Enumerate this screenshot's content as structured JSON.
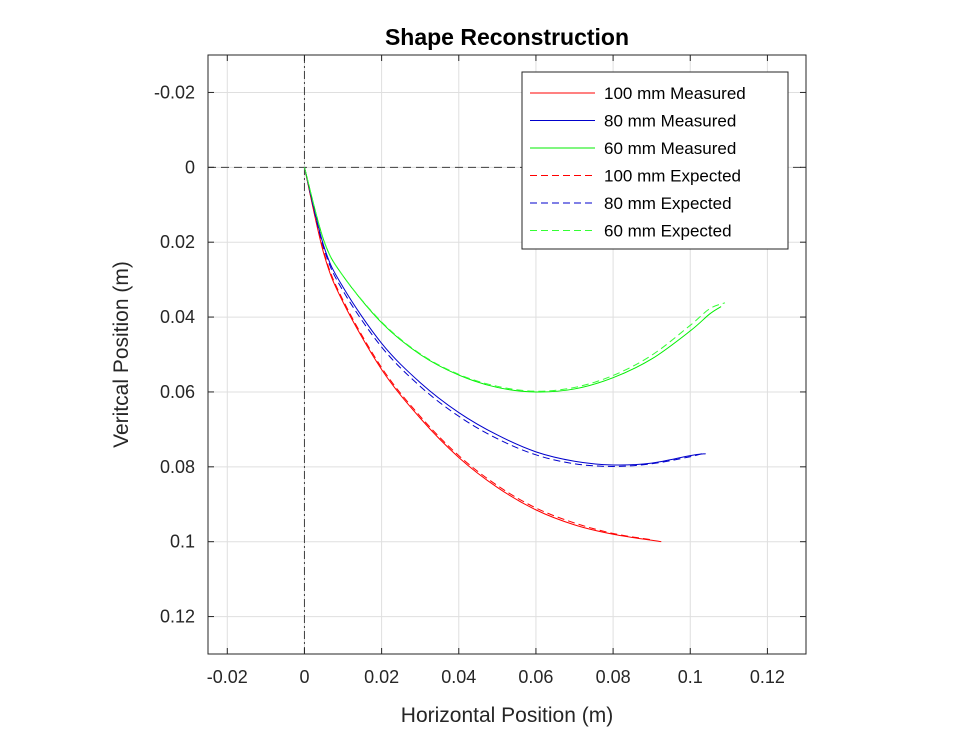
{
  "chart_data": {
    "type": "line",
    "title": "Shape Reconstruction",
    "xlabel": "Horizontal Position (m)",
    "ylabel": "Veritcal Position (m)",
    "xlim": [
      -0.025,
      0.13
    ],
    "ylim": [
      0.13,
      -0.03
    ],
    "y_axis_reversed": true,
    "grid": true,
    "xticks": [
      -0.02,
      0,
      0.02,
      0.04,
      0.06,
      0.08,
      0.1,
      0.12
    ],
    "xtick_labels": [
      "-0.02",
      "0",
      "0.02",
      "0.04",
      "0.06",
      "0.08",
      "0.1",
      "0.12"
    ],
    "yticks": [
      -0.02,
      0,
      0.02,
      0.04,
      0.06,
      0.08,
      0.1,
      0.12
    ],
    "ytick_labels": [
      "-0.02",
      "0",
      "0.02",
      "0.04",
      "0.06",
      "0.08",
      "0.1",
      "0.12"
    ],
    "reference_lines": [
      {
        "orientation": "horizontal",
        "value": 0,
        "style": "dashed",
        "color": "#404040"
      },
      {
        "orientation": "vertical",
        "value": 0,
        "style": "dashdot",
        "color": "#404040"
      }
    ],
    "legend_position": "top-right",
    "series": [
      {
        "name": "100 mm Measured",
        "color": "#ff0000",
        "style": "solid",
        "x": [
          0.0,
          0.005,
          0.01,
          0.02,
          0.03,
          0.04,
          0.05,
          0.06,
          0.07,
          0.08,
          0.0925
        ],
        "y": [
          0.0,
          0.023,
          0.036,
          0.054,
          0.067,
          0.0775,
          0.0855,
          0.0915,
          0.0955,
          0.098,
          0.1
        ]
      },
      {
        "name": "80 mm Measured",
        "color": "#0000cc",
        "style": "solid",
        "x": [
          0.0,
          0.005,
          0.01,
          0.02,
          0.03,
          0.04,
          0.05,
          0.06,
          0.07,
          0.08,
          0.09,
          0.1,
          0.104
        ],
        "y": [
          0.0,
          0.021,
          0.032,
          0.047,
          0.0575,
          0.0655,
          0.0715,
          0.076,
          0.0785,
          0.0795,
          0.079,
          0.077,
          0.0765
        ]
      },
      {
        "name": "60 mm Measured",
        "color": "#00ee00",
        "style": "solid",
        "x": [
          0.0,
          0.005,
          0.01,
          0.02,
          0.03,
          0.04,
          0.05,
          0.06,
          0.07,
          0.08,
          0.09,
          0.1,
          0.105,
          0.108
        ],
        "y": [
          0.0,
          0.0195,
          0.029,
          0.0415,
          0.05,
          0.0555,
          0.0588,
          0.06,
          0.0592,
          0.0562,
          0.0512,
          0.0437,
          0.0392,
          0.0372
        ]
      },
      {
        "name": "100 mm Expected",
        "color": "#ff0000",
        "style": "dashed",
        "x": [
          0.0,
          0.005,
          0.01,
          0.02,
          0.03,
          0.04,
          0.05,
          0.06,
          0.07,
          0.08,
          0.09
        ],
        "y": [
          0.0,
          0.0225,
          0.0355,
          0.0535,
          0.0665,
          0.077,
          0.085,
          0.091,
          0.095,
          0.0978,
          0.0995
        ]
      },
      {
        "name": "80 mm Expected",
        "color": "#0000cc",
        "style": "dashed",
        "x": [
          0.0,
          0.005,
          0.01,
          0.02,
          0.03,
          0.04,
          0.05,
          0.06,
          0.07,
          0.08,
          0.09,
          0.1,
          0.103
        ],
        "y": [
          0.0,
          0.0215,
          0.033,
          0.048,
          0.0585,
          0.0665,
          0.0725,
          0.0768,
          0.0792,
          0.0799,
          0.0792,
          0.0773,
          0.0765
        ]
      },
      {
        "name": "60 mm Expected",
        "color": "#33ff33",
        "style": "dashed",
        "x": [
          0.0,
          0.005,
          0.01,
          0.02,
          0.03,
          0.04,
          0.05,
          0.06,
          0.07,
          0.08,
          0.09,
          0.1,
          0.105,
          0.109
        ],
        "y": [
          0.0,
          0.0195,
          0.029,
          0.0413,
          0.0498,
          0.0553,
          0.0585,
          0.0598,
          0.0588,
          0.0556,
          0.0502,
          0.0422,
          0.0378,
          0.0362
        ]
      }
    ]
  }
}
